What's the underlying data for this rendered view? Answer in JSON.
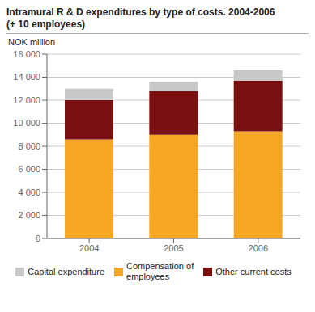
{
  "chart_data": {
    "type": "bar",
    "stacked": true,
    "title": "Intramural R & D expenditures by type of costs. 2004-2006",
    "subtitle": "(+ 10 employees)",
    "ylabel": "NOK million",
    "categories": [
      "2004",
      "2005",
      "2006"
    ],
    "series": [
      {
        "name": "Compensation of\nemployees",
        "color": "#F5A623",
        "values": [
          8600,
          9000,
          9300
        ]
      },
      {
        "name": "Other current costs",
        "color": "#7B1010",
        "values": [
          3400,
          3800,
          4400
        ]
      },
      {
        "name": "Capital expenditure",
        "color": "#C8C8C8",
        "values": [
          1000,
          800,
          900
        ]
      }
    ],
    "ylim": [
      0,
      16000
    ],
    "yticks": [
      0,
      {
        "value": 2000,
        "label": "2 000"
      },
      {
        "value": 4000,
        "label": "4 000"
      },
      {
        "value": 6000,
        "label": "6 000"
      },
      {
        "value": 8000,
        "label": "8 000"
      },
      {
        "value": 10000,
        "label": "10 000"
      },
      {
        "value": 12000,
        "label": "12 000"
      },
      {
        "value": 14000,
        "label": "14 000"
      },
      {
        "value": 16000,
        "label": "16 000"
      }
    ],
    "grid": true,
    "legend": "bottom"
  }
}
